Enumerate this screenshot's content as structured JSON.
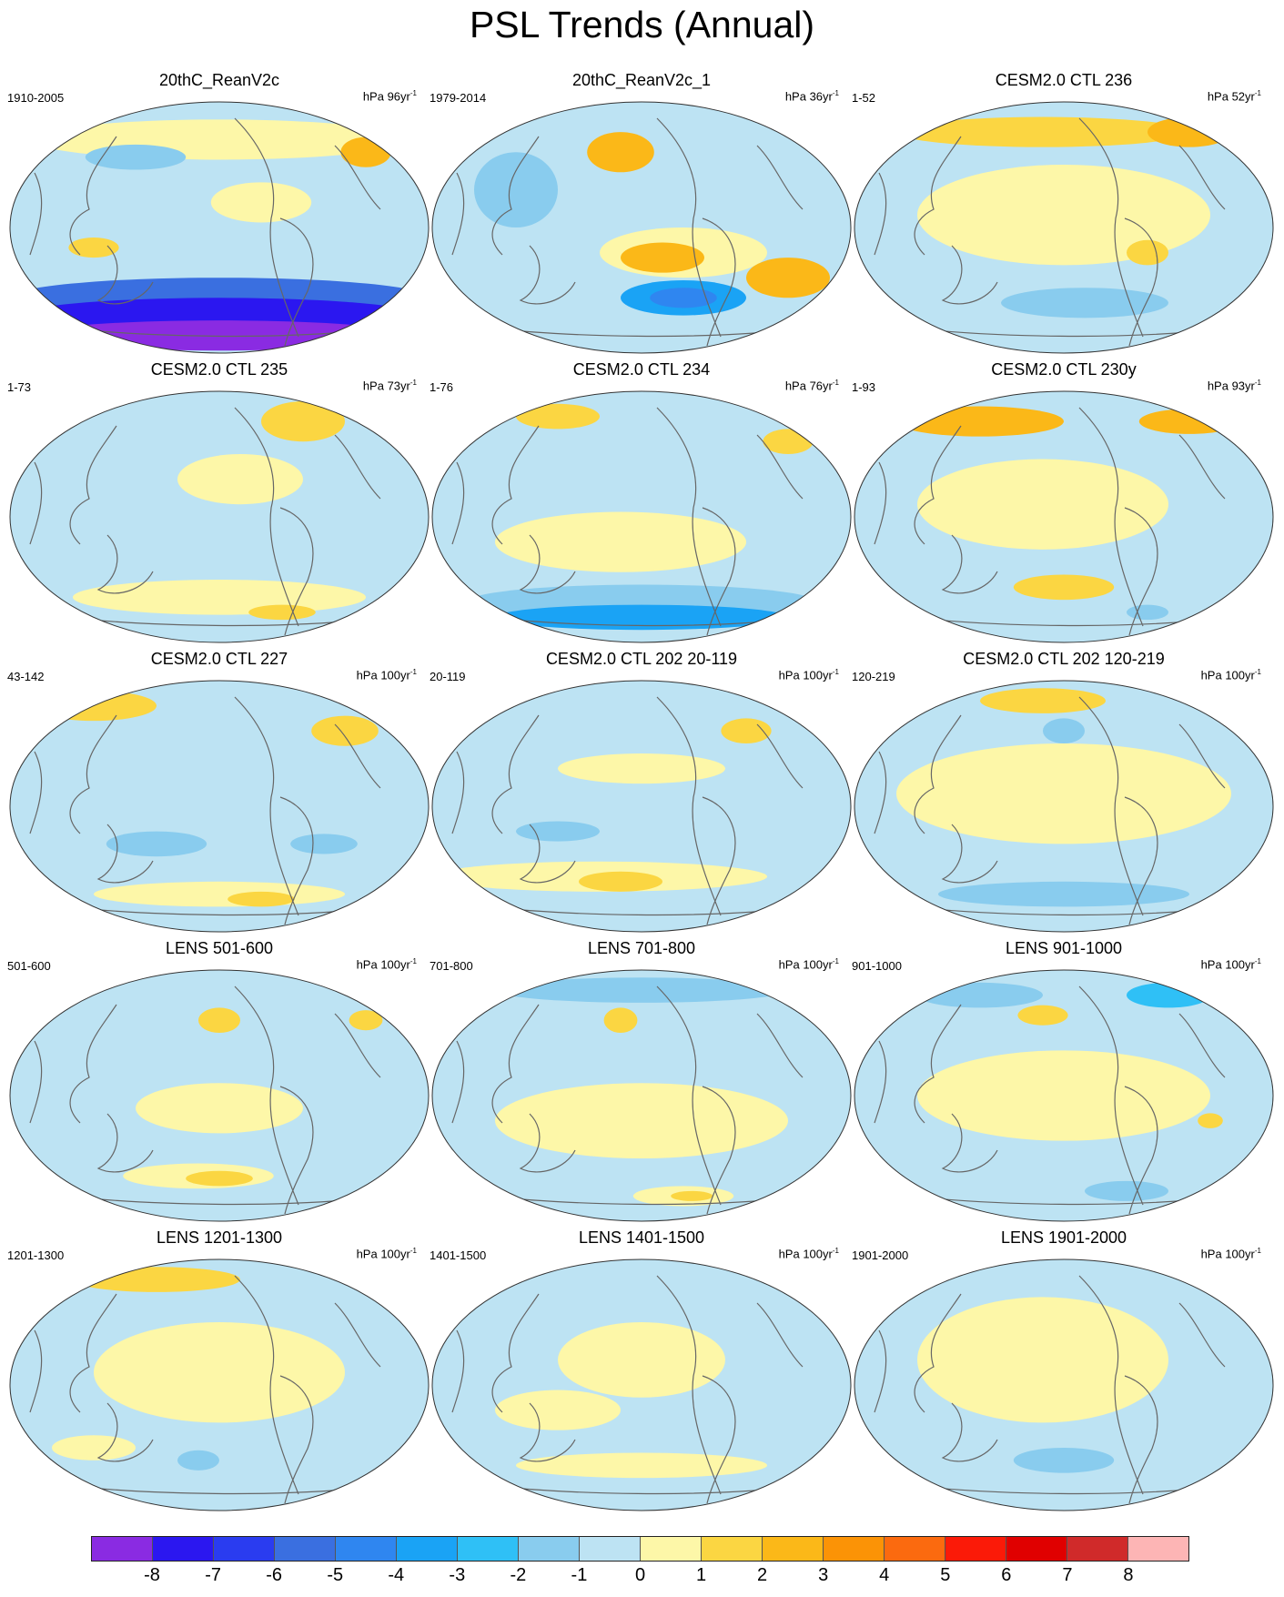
{
  "title": "PSL Trends (Annual)",
  "units_prefix": "hPa ",
  "units_suffix": "yr",
  "units_exp": "-1",
  "panels": [
    {
      "title": "20thC_ReanV2c",
      "years": "1910-2005",
      "units_n": "96",
      "pattern": 0
    },
    {
      "title": "20thC_ReanV2c_1",
      "years": "1979-2014",
      "units_n": "36",
      "pattern": 1
    },
    {
      "title": "CESM2.0 CTL 236",
      "years": "1-52",
      "units_n": "52",
      "pattern": 2
    },
    {
      "title": "CESM2.0 CTL 235",
      "years": "1-73",
      "units_n": "73",
      "pattern": 3
    },
    {
      "title": "CESM2.0 CTL 234",
      "years": "1-76",
      "units_n": "76",
      "pattern": 4
    },
    {
      "title": "CESM2.0 CTL 230y",
      "years": "1-93",
      "units_n": "93",
      "pattern": 5
    },
    {
      "title": "CESM2.0 CTL 227",
      "years": "43-142",
      "units_n": "100",
      "pattern": 6
    },
    {
      "title": "CESM2.0 CTL 202 20-119",
      "years": "20-119",
      "units_n": "100",
      "pattern": 7
    },
    {
      "title": "CESM2.0 CTL 202 120-219",
      "years": "120-219",
      "units_n": "100",
      "pattern": 8
    },
    {
      "title": "LENS 501-600",
      "years": "501-600",
      "units_n": "100",
      "pattern": 9
    },
    {
      "title": "LENS 701-800",
      "years": "701-800",
      "units_n": "100",
      "pattern": 10
    },
    {
      "title": "LENS 901-1000",
      "years": "901-1000",
      "units_n": "100",
      "pattern": 11
    },
    {
      "title": "LENS 1201-1300",
      "years": "1201-1300",
      "units_n": "100",
      "pattern": 12
    },
    {
      "title": "LENS 1401-1500",
      "years": "1401-1500",
      "units_n": "100",
      "pattern": 13
    },
    {
      "title": "LENS 1901-2000",
      "years": "1901-2000",
      "units_n": "100",
      "pattern": 14
    }
  ],
  "legend": {
    "labels": [
      "-8",
      "-7",
      "-6",
      "-5",
      "-4",
      "-3",
      "-2",
      "-1",
      "0",
      "1",
      "2",
      "3",
      "4",
      "5",
      "6",
      "7",
      "8"
    ],
    "colors": [
      "#8a2be2",
      "#2b17f0",
      "#2a3cf0",
      "#3a6fe0",
      "#2f86f0",
      "#1aa3f5",
      "#2fc0f6",
      "#89ccee",
      "#bde3f3",
      "#fdf7a8",
      "#fbd642",
      "#fbb818",
      "#fb9306",
      "#fb6a0f",
      "#fb1a08",
      "#e00000",
      "#d02a2a",
      "#fdb5b5"
    ]
  },
  "fields": {
    "background_cool": "#bde3f3",
    "background_warm": "#fdf7a8"
  }
}
